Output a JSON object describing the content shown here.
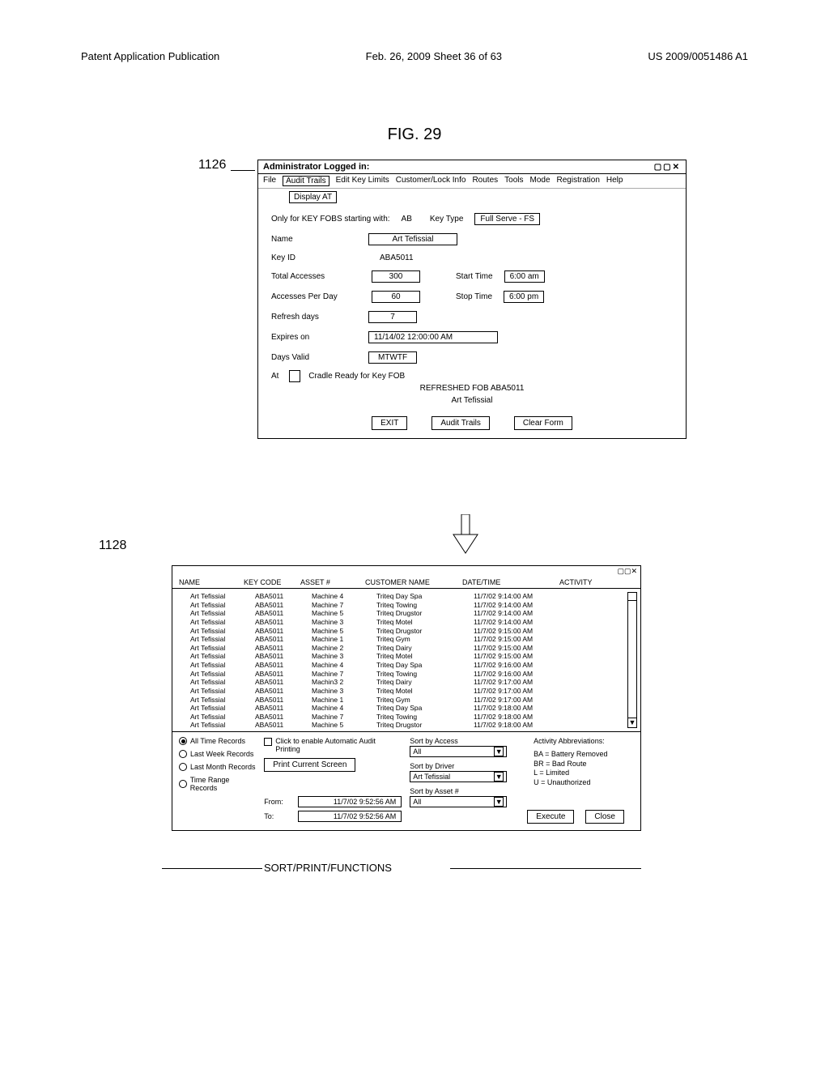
{
  "page_header": {
    "left": "Patent Application Publication",
    "center": "Feb. 26, 2009  Sheet 36 of 63",
    "right": "US 2009/0051486 A1"
  },
  "fig_title": "FIG. 29",
  "ref_1126": "1126",
  "ref_1128": "1128",
  "window1": {
    "title": "Administrator Logged in:",
    "menu": {
      "file": "File",
      "audit_trails": "Audit Trails",
      "edit_key": "Edit Key Limits",
      "cust": "Customer/Lock Info",
      "routes": "Routes",
      "tools": "Tools",
      "mode": "Mode",
      "registration": "Registration",
      "help": "Help",
      "display_at": "Display AT"
    },
    "key_fobs_prefix_label": "Only for KEY FOBS starting with:",
    "key_fobs_prefix": "AB",
    "key_type_label": "Key Type",
    "key_type": "Full Serve - FS",
    "name_label": "Name",
    "name": "Art Tefissial",
    "key_id_label": "Key ID",
    "key_id": "ABA5011",
    "total_accesses_label": "Total Accesses",
    "total_accesses": "300",
    "start_time_label": "Start Time",
    "start_time": "6:00 am",
    "accesses_per_day_label": "Accesses Per Day",
    "accesses_per_day": "60",
    "stop_time_label": "Stop Time",
    "stop_time": "6:00 pm",
    "refresh_days_label": "Refresh days",
    "refresh_days": "7",
    "expires_on_label": "Expires on",
    "expires_on": "11/14/02 12:00:00 AM",
    "days_valid_label": "Days Valid",
    "days_valid": "MTWTF",
    "at_label": "At",
    "status_1": "Cradle Ready for Key FOB",
    "status_2": "REFRESHED FOB ABA5011",
    "status_3": "Art Tefissial",
    "exit_btn": "EXIT",
    "audit_btn": "Audit Trails",
    "clear_btn": "Clear Form"
  },
  "window2": {
    "headers": {
      "name": "NAME",
      "key": "KEY CODE",
      "asset": "ASSET #",
      "cust": "CUSTOMER NAME",
      "date": "DATE/TIME",
      "act": "ACTIVITY"
    },
    "rows": [
      {
        "name": "Art  Tefissial",
        "key": "ABA5011",
        "asset": "Machine  4",
        "cust": "Triteq  Day  Spa",
        "date": "11/7/02  9:14:00  AM",
        "act": ""
      },
      {
        "name": "Art  Tefissial",
        "key": "ABA5011",
        "asset": "Machine  7",
        "cust": "Triteq  Towing",
        "date": "11/7/02  9:14:00  AM",
        "act": ""
      },
      {
        "name": "Art  Tefissial",
        "key": "ABA5011",
        "asset": "Machine  5",
        "cust": "Triteq  Drugstor",
        "date": "11/7/02  9:14:00  AM",
        "act": ""
      },
      {
        "name": "Art  Tefissial",
        "key": "ABA5011",
        "asset": "Machine  3",
        "cust": "Triteq  Motel",
        "date": "11/7/02  9:14:00  AM",
        "act": ""
      },
      {
        "name": "Art  Tefissial",
        "key": "ABA5011",
        "asset": "Machine  5",
        "cust": "Triteq  Drugstor",
        "date": "11/7/02  9:15:00  AM",
        "act": ""
      },
      {
        "name": "Art  Tefissial",
        "key": "ABA5011",
        "asset": "Machine  1",
        "cust": "Triteq  Gym",
        "date": "11/7/02  9:15:00  AM",
        "act": ""
      },
      {
        "name": "Art  Tefissial",
        "key": "ABA5011",
        "asset": "Machine  2",
        "cust": "Triteq  Dairy",
        "date": "11/7/02  9:15:00  AM",
        "act": ""
      },
      {
        "name": "Art  Tefissial",
        "key": "ABA5011",
        "asset": "Machine  3",
        "cust": "Triteq  Motel",
        "date": "11/7/02  9:15:00  AM",
        "act": ""
      },
      {
        "name": "Art  Tefissial",
        "key": "ABA5011",
        "asset": "Machine  4",
        "cust": "Triteq  Day  Spa",
        "date": "11/7/02  9:16:00  AM",
        "act": ""
      },
      {
        "name": "Art  Tefissial",
        "key": "ABA5011",
        "asset": "Machine  7",
        "cust": "Triteq  Towing",
        "date": "11/7/02  9:16:00  AM",
        "act": ""
      },
      {
        "name": "Art  Tefissial",
        "key": "ABA5011",
        "asset": "Machin3  2",
        "cust": "Triteq  Dairy",
        "date": "11/7/02  9:17:00  AM",
        "act": ""
      },
      {
        "name": "Art  Tefissial",
        "key": "ABA5011",
        "asset": "Machine  3",
        "cust": "Triteq  Motel",
        "date": "11/7/02  9:17:00  AM",
        "act": ""
      },
      {
        "name": "Art  Tefissial",
        "key": "ABA5011",
        "asset": "Machine  1",
        "cust": "Triteq  Gym",
        "date": "11/7/02  9:17:00  AM",
        "act": ""
      },
      {
        "name": "Art  Tefissial",
        "key": "ABA5011",
        "asset": "Machine  4",
        "cust": "Triteq  Day  Spa",
        "date": "11/7/02  9:18:00  AM",
        "act": ""
      },
      {
        "name": "Art  Tefissial",
        "key": "ABA5011",
        "asset": "Machine  7",
        "cust": "Triteq  Towing",
        "date": "11/7/02  9:18:00  AM",
        "act": ""
      },
      {
        "name": "Art  Tefissial",
        "key": "ABA5011",
        "asset": "Machine  5",
        "cust": "Triteq  Drugstor",
        "date": "11/7/02  9:18:00  AM",
        "act": ""
      }
    ],
    "time_filters": {
      "all_time": "All Time Records",
      "last_week": "Last Week Records",
      "last_month": "Last Month Records",
      "time_range": "Time Range Records"
    },
    "auto_print_label": "Click to enable Automatic Audit Printing",
    "print_btn": "Print Current Screen",
    "from_label": "From:",
    "from_val": "11/7/02  9:52:56 AM",
    "to_label": "To:",
    "to_val": "11/7/02  9:52:56 AM",
    "sort_access_label": "Sort by Access",
    "sort_access_val": "All",
    "sort_driver_label": "Sort by Driver",
    "sort_driver_val": "Art  Tefissial",
    "sort_asset_label": "Sort by Asset #",
    "sort_asset_val": "All",
    "abbrev_title": "Activity Abbreviations:",
    "abbrevs": {
      "ba": "BA = Battery Removed",
      "br": "BR = Bad Route",
      "l": "L = Limited",
      "u": "U = Unauthorized"
    },
    "execute_btn": "Execute",
    "close_btn": "Close"
  },
  "sortprint_label": "SORT/PRINT/FUNCTIONS"
}
